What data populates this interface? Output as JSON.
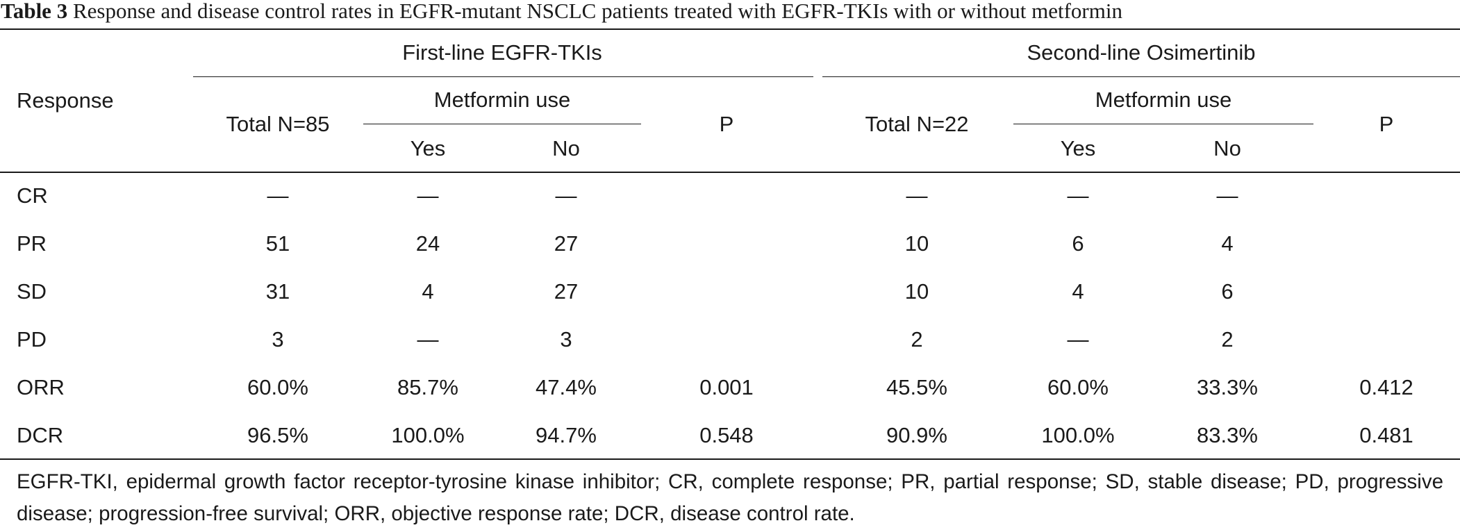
{
  "caption": {
    "label": "Table 3",
    "text": " Response and disease control rates in EGFR-mutant NSCLC patients treated with EGFR-TKIs with or without metformin"
  },
  "headers": {
    "response": "Response",
    "group1": "First-line EGFR-TKIs",
    "group2": "Second-line Osimertinib",
    "total1": "Total N=85",
    "total2": "Total N=22",
    "metformin1": "Metformin use",
    "metformin2": "Metformin use",
    "p1": "P",
    "p2": "P",
    "yes1": "Yes",
    "no1": "No",
    "yes2": "Yes",
    "no2": "No"
  },
  "rows": [
    {
      "label": "CR",
      "cells": [
        "—",
        "—",
        "—",
        "",
        "—",
        "—",
        "—",
        ""
      ]
    },
    {
      "label": "PR",
      "cells": [
        "51",
        "24",
        "27",
        "",
        "10",
        "6",
        "4",
        ""
      ]
    },
    {
      "label": "SD",
      "cells": [
        "31",
        "4",
        "27",
        "",
        "10",
        "4",
        "6",
        ""
      ]
    },
    {
      "label": "PD",
      "cells": [
        "3",
        "—",
        "3",
        "",
        "2",
        "—",
        "2",
        ""
      ]
    },
    {
      "label": "ORR",
      "cells": [
        "60.0%",
        "85.7%",
        "47.4%",
        "0.001",
        "45.5%",
        "60.0%",
        "33.3%",
        "0.412"
      ]
    },
    {
      "label": "DCR",
      "cells": [
        "96.5%",
        "100.0%",
        "94.7%",
        "0.548",
        "90.9%",
        "100.0%",
        "83.3%",
        "0.481"
      ]
    }
  ],
  "footnote": "EGFR-TKI, epidermal growth factor receptor-tyrosine kinase inhibitor; CR, complete response; PR, partial response; SD, stable disease; PD, progressive disease; progression-free survival; ORR, objective response rate; DCR, disease control rate."
}
